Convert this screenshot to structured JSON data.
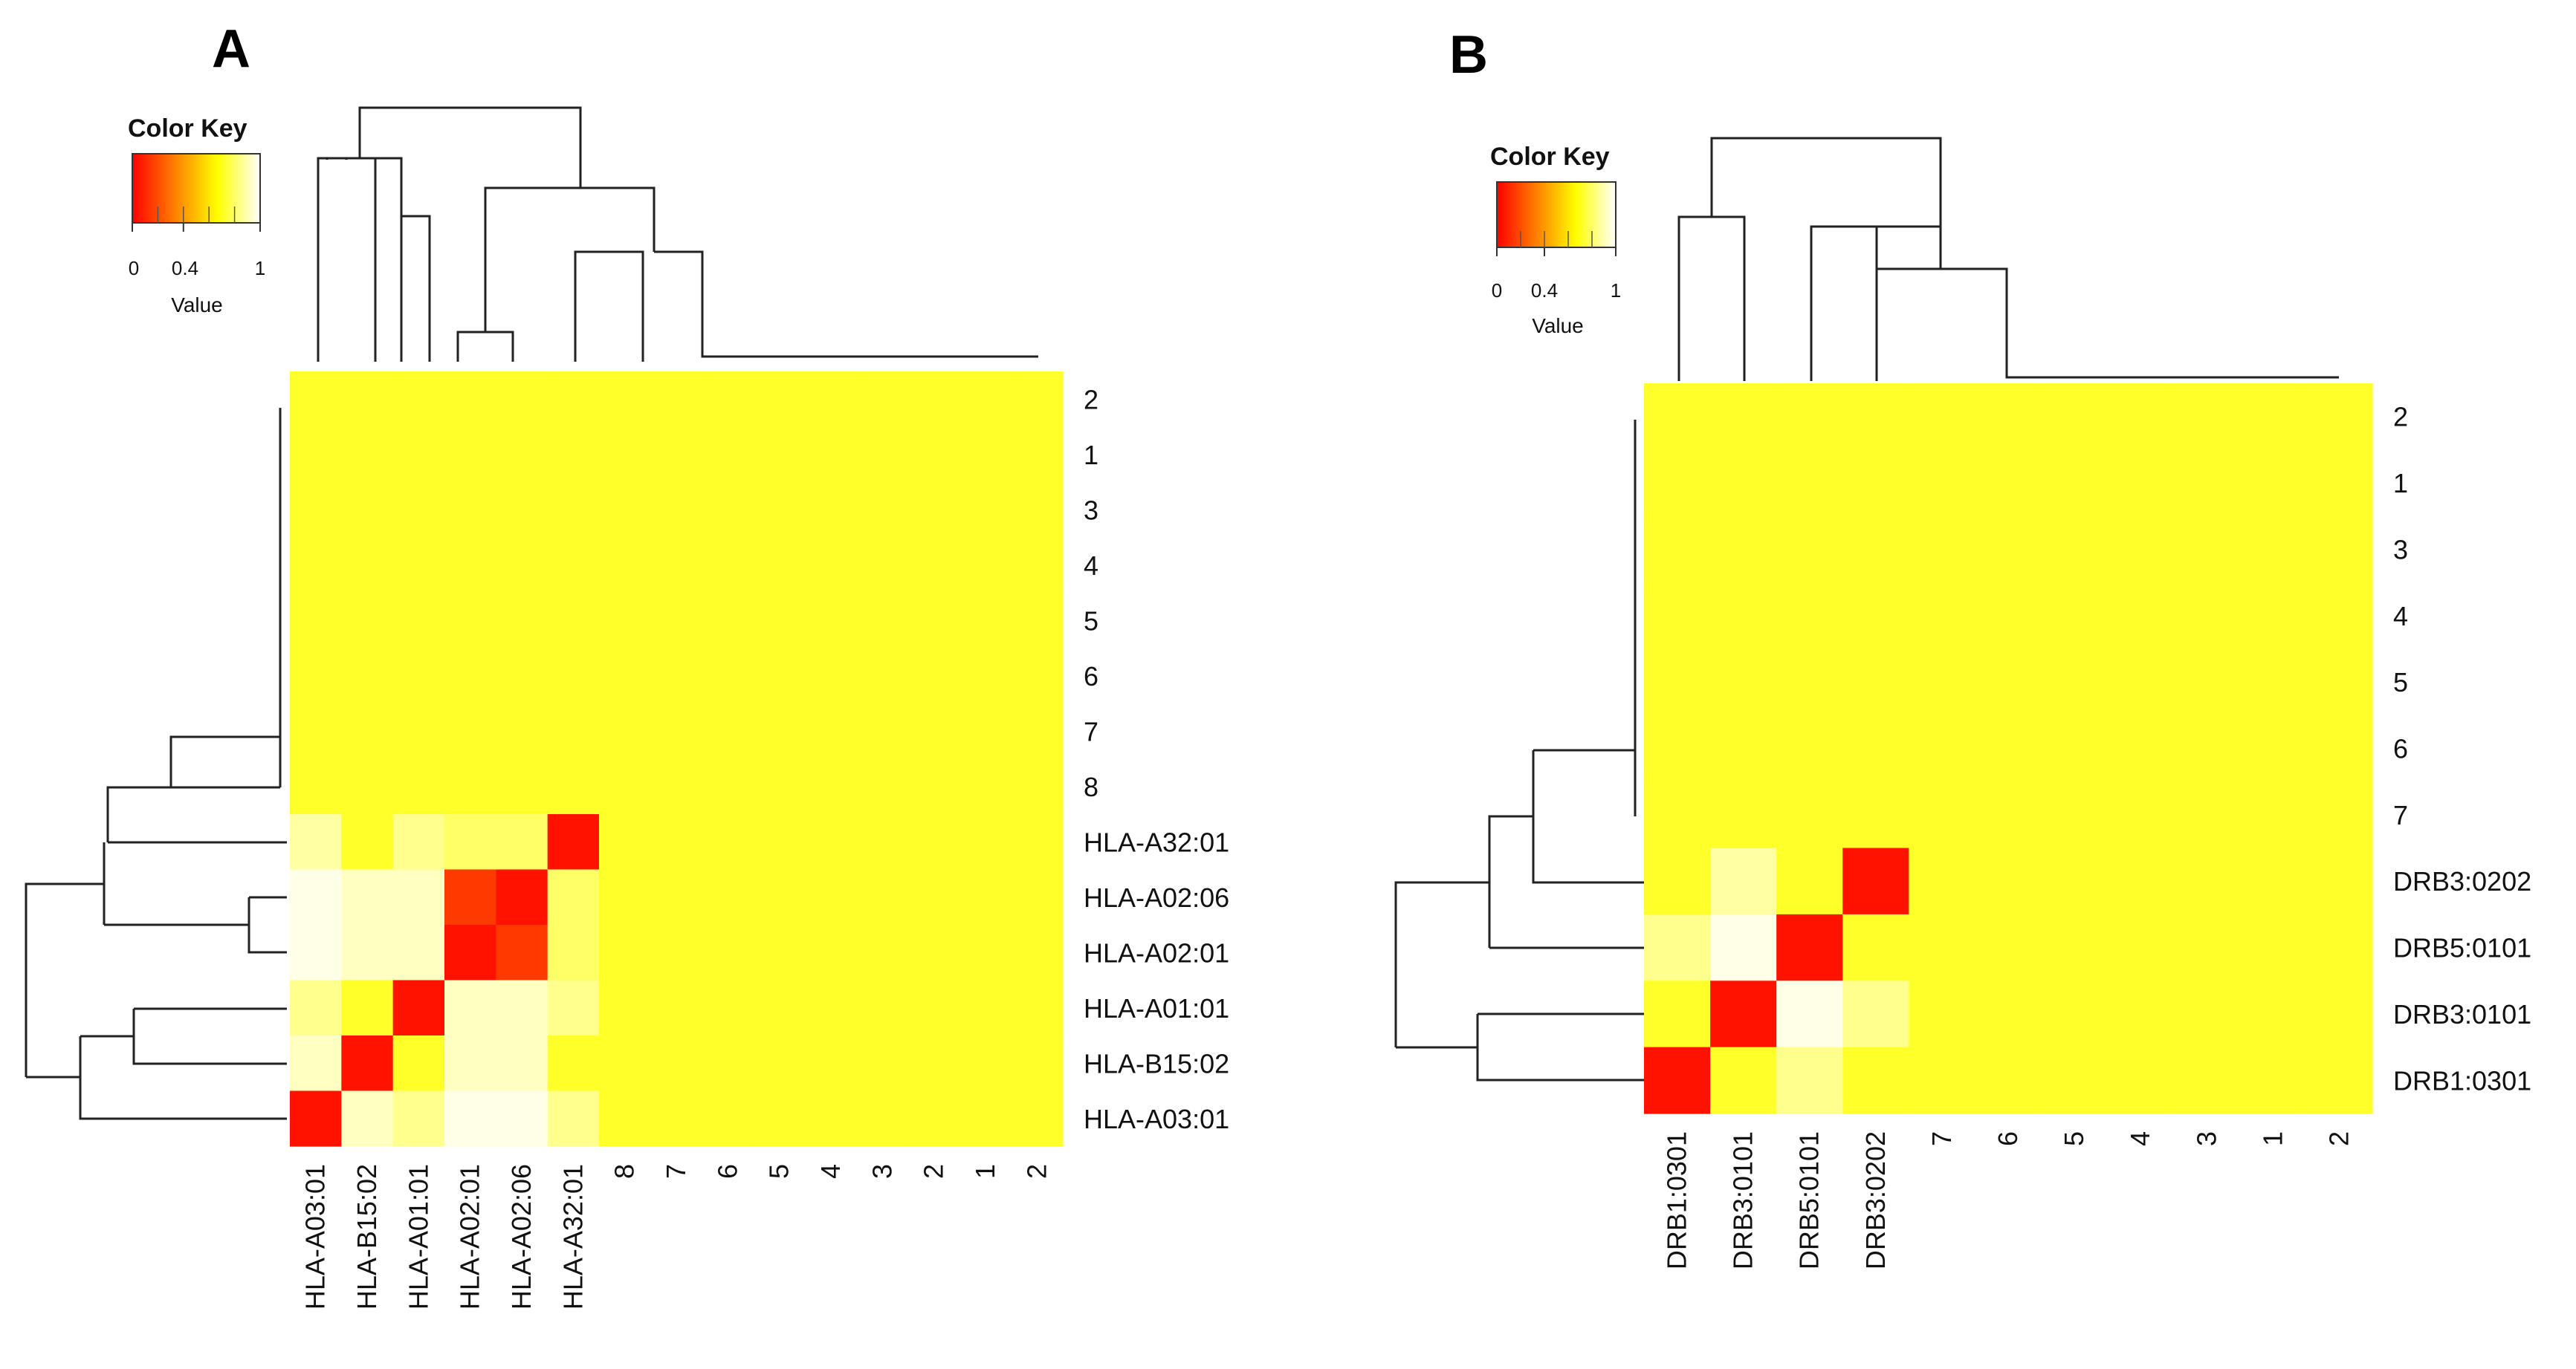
{
  "colors": {
    "scale": [
      "#ff0000",
      "#ff4000",
      "#ff8000",
      "#ffbf00",
      "#ffff00",
      "#ffff80",
      "#ffffff"
    ],
    "background": "#ffffff",
    "base_cell": "#ffcc00"
  },
  "chart_data": [
    {
      "type": "heatmap",
      "panel": "A",
      "title": "A",
      "color_key": {
        "title": "Color Key",
        "label": "Value",
        "ticks": [
          "0",
          "0.4",
          "1"
        ],
        "tick_values": [
          0,
          0.4,
          1
        ],
        "range": [
          0,
          1
        ]
      },
      "row_labels": [
        "2",
        "1",
        "3",
        "4",
        "5",
        "6",
        "7",
        "8",
        "HLA-A32:01",
        "HLA-A02:06",
        "HLA-A02:01",
        "HLA-A01:01",
        "HLA-B15:02",
        "HLA-A03:01"
      ],
      "col_labels": [
        "HLA-A03:01",
        "HLA-B15:02",
        "HLA-A01:01",
        "HLA-A02:01",
        "HLA-A02:06",
        "HLA-A32:01",
        "8",
        "7",
        "6",
        "5",
        "4",
        "3",
        "2",
        "1",
        "2"
      ],
      "default_value": 0.72,
      "allele_rows": [
        "HLA-A32:01",
        "HLA-A02:06",
        "HLA-A02:01",
        "HLA-A01:01",
        "HLA-B15:02",
        "HLA-A03:01"
      ],
      "allele_values": [
        [
          0.88,
          0.72,
          0.85,
          0.8,
          0.8,
          0.05
        ],
        [
          0.97,
          0.92,
          0.92,
          0.15,
          0.05,
          0.8
        ],
        [
          0.97,
          0.92,
          0.92,
          0.05,
          0.15,
          0.8
        ],
        [
          0.85,
          0.72,
          0.05,
          0.92,
          0.92,
          0.85
        ],
        [
          0.92,
          0.05,
          0.72,
          0.92,
          0.92,
          0.72
        ],
        [
          0.05,
          0.92,
          0.85,
          0.97,
          0.97,
          0.85
        ]
      ]
    },
    {
      "type": "heatmap",
      "panel": "B",
      "title": "B",
      "color_key": {
        "title": "Color Key",
        "label": "Value",
        "ticks": [
          "0",
          "0.4",
          "1"
        ],
        "tick_values": [
          0,
          0.4,
          1
        ],
        "range": [
          0,
          1
        ]
      },
      "row_labels": [
        "2",
        "1",
        "3",
        "4",
        "5",
        "6",
        "7",
        "DRB3:0202",
        "DRB5:0101",
        "DRB3:0101",
        "DRB1:0301"
      ],
      "col_labels": [
        "DRB1:0301",
        "DRB3:0101",
        "DRB5:0101",
        "DRB3:0202",
        "7",
        "6",
        "5",
        "4",
        "3",
        "1",
        "2"
      ],
      "default_value": 0.72,
      "allele_rows": [
        "DRB3:0202",
        "DRB5:0101",
        "DRB3:0101",
        "DRB1:0301"
      ],
      "allele_values": [
        [
          0.72,
          0.88,
          0.72,
          0.05
        ],
        [
          0.85,
          0.97,
          0.05,
          0.72
        ],
        [
          0.72,
          0.05,
          0.97,
          0.85
        ],
        [
          0.05,
          0.72,
          0.85,
          0.72
        ]
      ]
    }
  ]
}
